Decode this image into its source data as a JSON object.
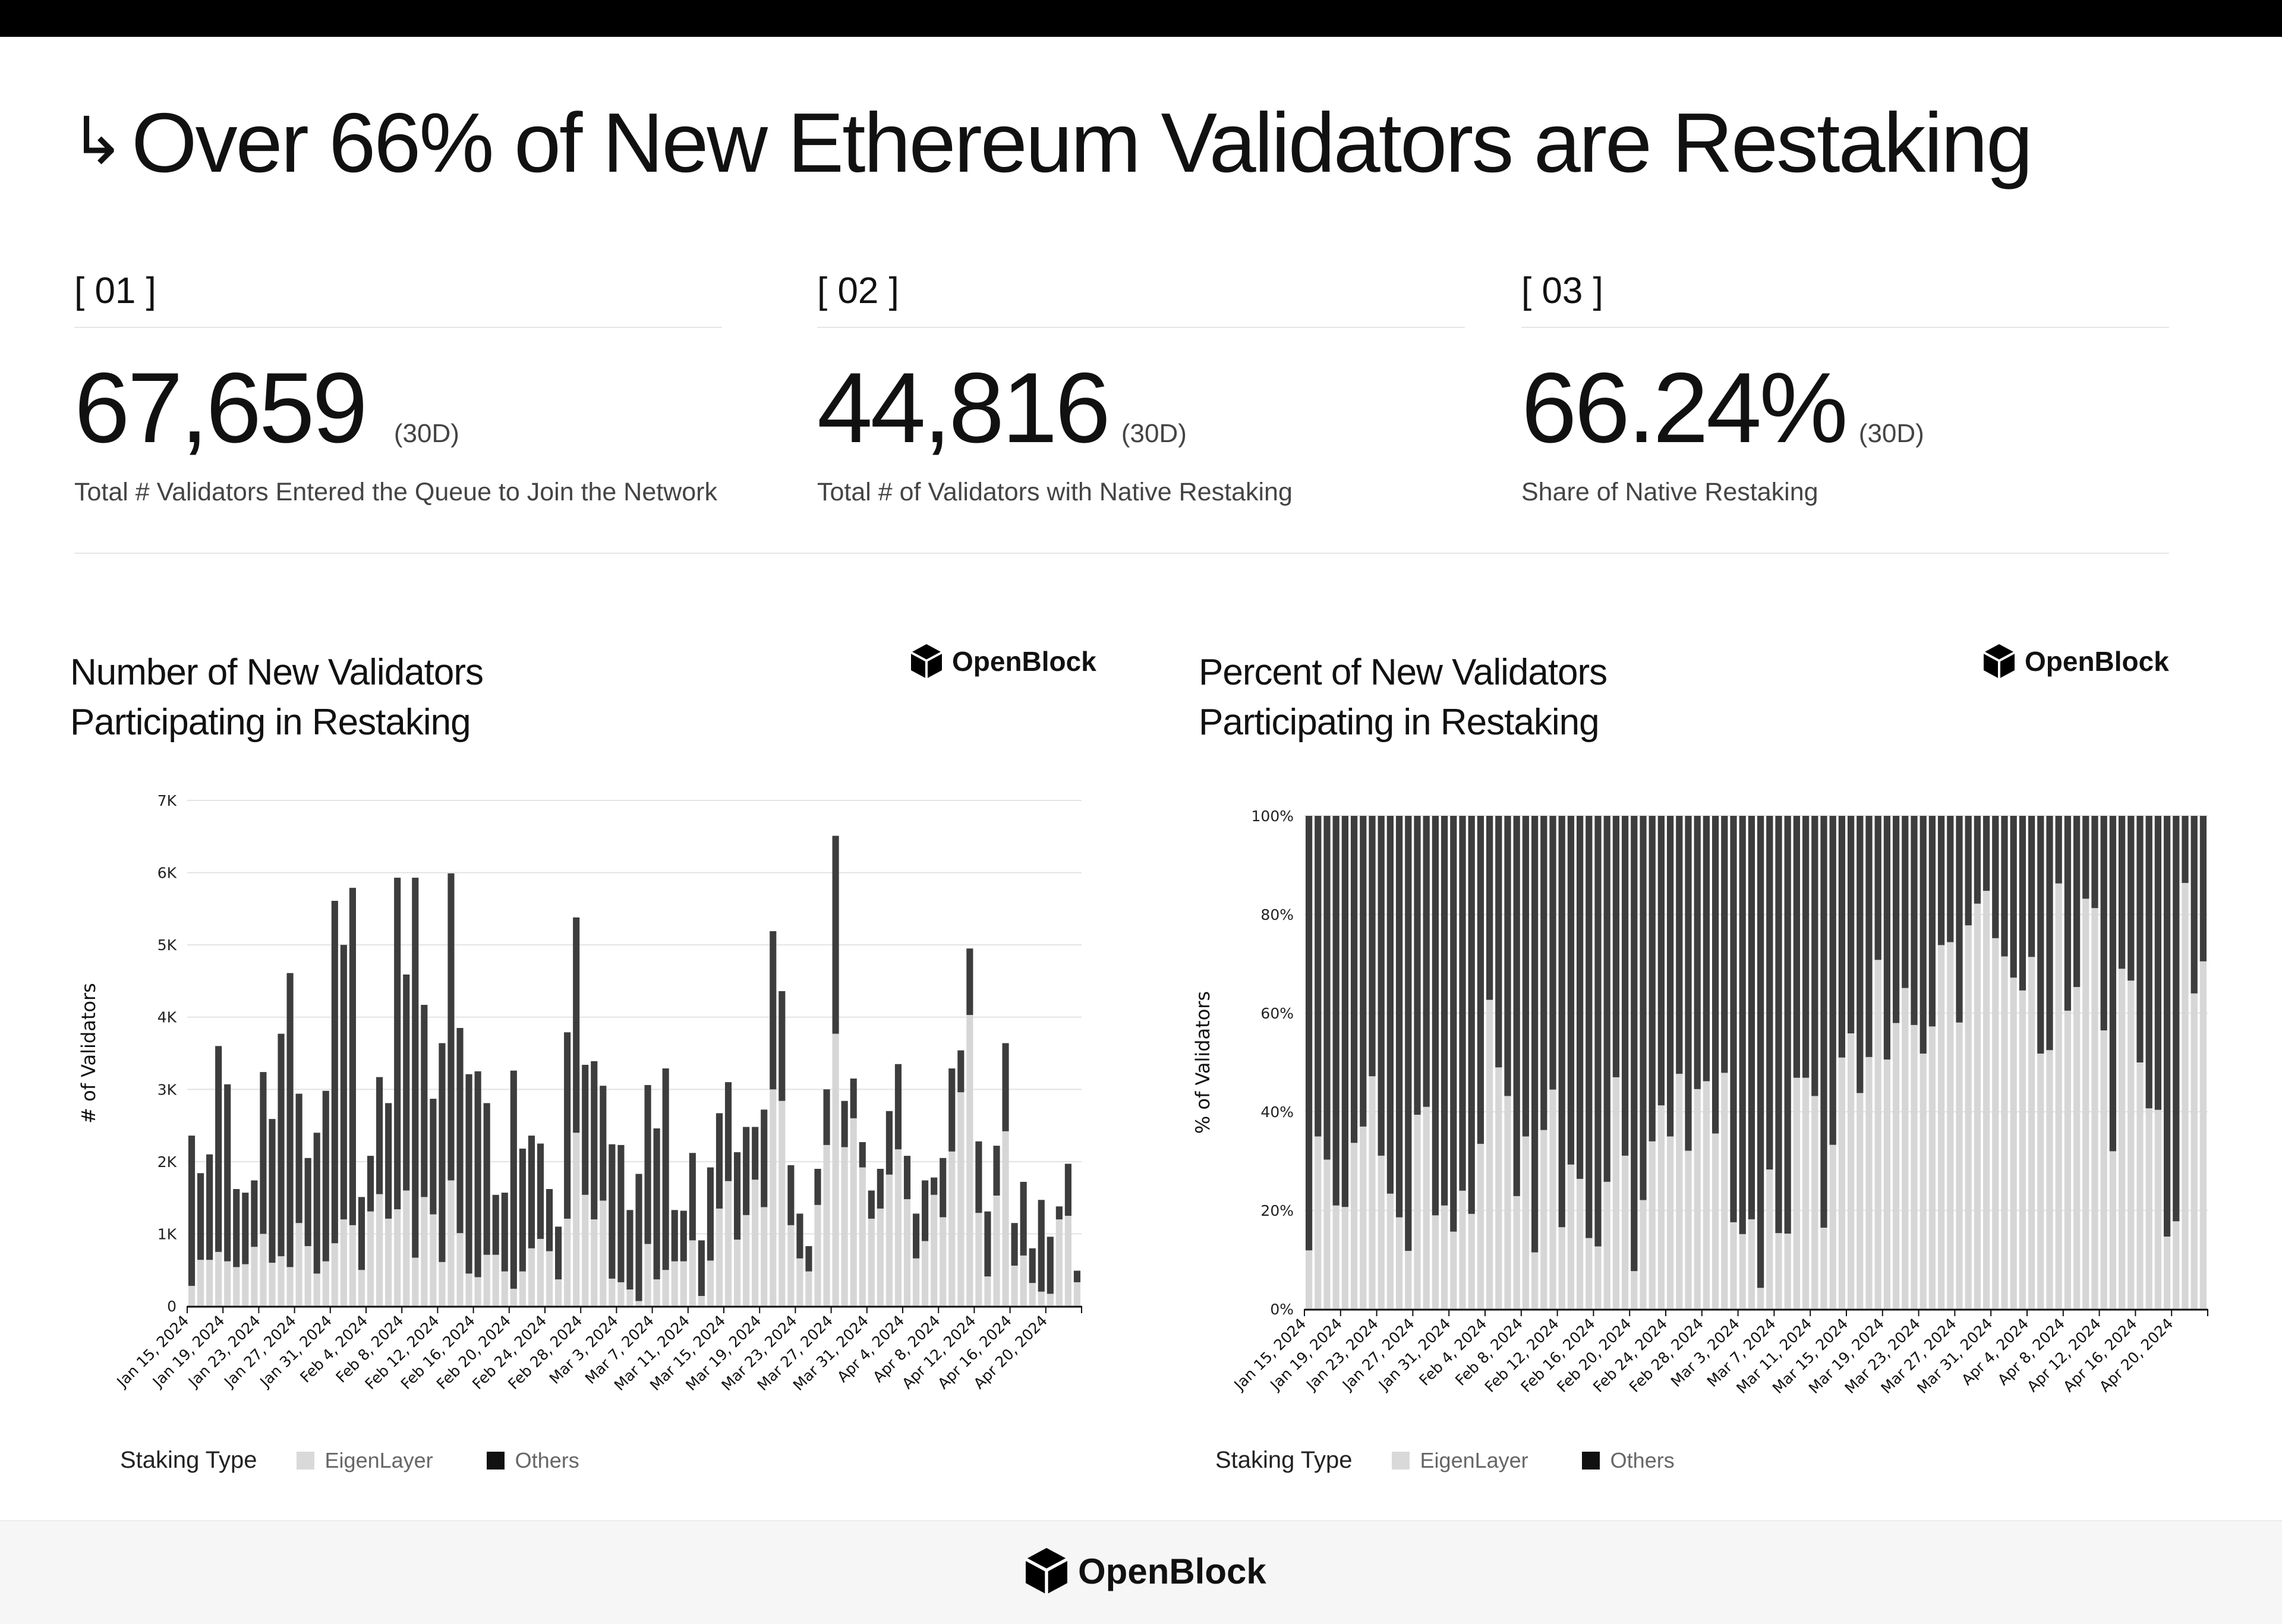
{
  "title": "Over 66% of New Ethereum Validators are Restaking",
  "title_icon": "arrow-turn-down-right-icon",
  "kpis": [
    {
      "index": "[ 01 ]",
      "value": "67,659",
      "period": "(30D)",
      "label": "Total # Validators Entered the Queue to Join the Network"
    },
    {
      "index": "[ 02 ]",
      "value": "44,816",
      "period": "(30D)",
      "label": "Total # of Validators with Native Restaking"
    },
    {
      "index": "[ 03 ]",
      "value": "66.24%",
      "period": "(30D)",
      "label": "Share of Native Restaking"
    }
  ],
  "brand": {
    "name": "OpenBlock",
    "icon": "cube-logo-icon"
  },
  "colors": {
    "eigenlayer": "#d6d6d6",
    "others": "#3d3d3d",
    "legend_others": "#111111"
  },
  "chart_data": [
    {
      "type": "bar",
      "stacked": true,
      "title_line1": "Number of New Validators",
      "title_line2": "Participating in Restaking",
      "ylabel": "# of Validators",
      "ylim": [
        0,
        7000
      ],
      "yticks": [
        0,
        1000,
        2000,
        3000,
        4000,
        5000,
        6000,
        7000
      ],
      "ytick_labels": [
        "0",
        "1K",
        "2K",
        "3K",
        "4K",
        "5K",
        "6K",
        "7K"
      ],
      "grid": true,
      "legend_title": "Staking Type",
      "legend_position": "bottom-left",
      "xtick_labels": [
        "Jan 15, 2024",
        "Jan 19, 2024",
        "Jan 23, 2024",
        "Jan 27, 2024",
        "Jan 31, 2024",
        "Feb 4, 2024",
        "Feb 8, 2024",
        "Feb 12, 2024",
        "Feb 16, 2024",
        "Feb 20, 2024",
        "Feb 24, 2024",
        "Feb 28, 2024",
        "Mar 3, 2024",
        "Mar 7, 2024",
        "Mar 11, 2024",
        "Mar 15, 2024",
        "Mar 19, 2024",
        "Mar 23, 2024",
        "Mar 27, 2024",
        "Mar 31, 2024",
        "Apr 4, 2024",
        "Apr 8, 2024",
        "Apr 12, 2024",
        "Apr 16, 2024",
        "Apr 20, 2024"
      ],
      "categories": [
        "Jan 15, 2024",
        "Jan 16, 2024",
        "Jan 17, 2024",
        "Jan 18, 2024",
        "Jan 19, 2024",
        "Jan 20, 2024",
        "Jan 21, 2024",
        "Jan 22, 2024",
        "Jan 23, 2024",
        "Jan 24, 2024",
        "Jan 25, 2024",
        "Jan 26, 2024",
        "Jan 27, 2024",
        "Jan 28, 2024",
        "Jan 29, 2024",
        "Jan 30, 2024",
        "Jan 31, 2024",
        "Feb 1, 2024",
        "Feb 2, 2024",
        "Feb 3, 2024",
        "Feb 4, 2024",
        "Feb 5, 2024",
        "Feb 6, 2024",
        "Feb 7, 2024",
        "Feb 8, 2024",
        "Feb 9, 2024",
        "Feb 10, 2024",
        "Feb 11, 2024",
        "Feb 12, 2024",
        "Feb 13, 2024",
        "Feb 14, 2024",
        "Feb 15, 2024",
        "Feb 16, 2024",
        "Feb 17, 2024",
        "Feb 18, 2024",
        "Feb 19, 2024",
        "Feb 20, 2024",
        "Feb 21, 2024",
        "Feb 22, 2024",
        "Feb 23, 2024",
        "Feb 24, 2024",
        "Feb 25, 2024",
        "Feb 26, 2024",
        "Feb 27, 2024",
        "Feb 28, 2024",
        "Feb 29, 2024",
        "Mar 1, 2024",
        "Mar 2, 2024",
        "Mar 3, 2024",
        "Mar 4, 2024",
        "Mar 5, 2024",
        "Mar 6, 2024",
        "Mar 7, 2024",
        "Mar 8, 2024",
        "Mar 9, 2024",
        "Mar 10, 2024",
        "Mar 11, 2024",
        "Mar 12, 2024",
        "Mar 13, 2024",
        "Mar 14, 2024",
        "Mar 15, 2024",
        "Mar 16, 2024",
        "Mar 17, 2024",
        "Mar 18, 2024",
        "Mar 19, 2024",
        "Mar 20, 2024",
        "Mar 21, 2024",
        "Mar 22, 2024",
        "Mar 23, 2024",
        "Mar 24, 2024",
        "Mar 25, 2024",
        "Mar 26, 2024",
        "Mar 27, 2024",
        "Mar 28, 2024",
        "Mar 29, 2024",
        "Mar 30, 2024",
        "Mar 31, 2024",
        "Apr 1, 2024",
        "Apr 2, 2024",
        "Apr 3, 2024",
        "Apr 4, 2024",
        "Apr 5, 2024",
        "Apr 6, 2024",
        "Apr 7, 2024",
        "Apr 8, 2024",
        "Apr 9, 2024",
        "Apr 10, 2024",
        "Apr 11, 2024",
        "Apr 12, 2024",
        "Apr 13, 2024",
        "Apr 14, 2024",
        "Apr 15, 2024",
        "Apr 16, 2024",
        "Apr 17, 2024",
        "Apr 18, 2024",
        "Apr 19, 2024",
        "Apr 20, 2024",
        "Apr 21, 2024",
        "Apr 22, 2024",
        "Apr 23, 2024"
      ],
      "series": [
        {
          "name": "EigenLayer",
          "values": [
            280,
            640,
            640,
            750,
            620,
            540,
            580,
            820,
            1000,
            600,
            690,
            540,
            1150,
            830,
            450,
            620,
            870,
            1200,
            1120,
            500,
            1310,
            1550,
            1210,
            1340,
            1600,
            670,
            1510,
            1270,
            610,
            1740,
            1010,
            450,
            400,
            710,
            710,
            480,
            240,
            480,
            800,
            930,
            760,
            370,
            1210,
            2400,
            1540,
            1200,
            1460,
            380,
            330,
            230,
            70,
            860,
            370,
            500,
            620,
            620,
            910,
            140,
            630,
            1350,
            1730,
            920,
            1260,
            1750,
            1370,
            3000,
            2840,
            1120,
            660,
            480,
            1400,
            2230,
            3770,
            2200,
            2600,
            1920,
            1210,
            1350,
            1820,
            2170,
            1480,
            660,
            900,
            1540,
            1230,
            2140,
            2960,
            4030,
            1290,
            410,
            1530,
            2420,
            560,
            700,
            320,
            200,
            170,
            1200,
            1250,
            330
          ]
        },
        {
          "name": "Others",
          "values": [
            2080,
            1200,
            1460,
            2850,
            2450,
            1080,
            990,
            920,
            2240,
            1990,
            3080,
            4070,
            1790,
            1220,
            1950,
            2360,
            4740,
            3800,
            4670,
            1010,
            770,
            1620,
            1600,
            4590,
            2990,
            5260,
            2660,
            1600,
            3030,
            4250,
            2840,
            2760,
            2850,
            2100,
            830,
            1090,
            3020,
            1700,
            1560,
            1320,
            860,
            730,
            2580,
            2980,
            1800,
            2190,
            1590,
            1860,
            1900,
            1100,
            1760,
            2200,
            2090,
            2790,
            710,
            700,
            1210,
            770,
            1290,
            1320,
            1370,
            1210,
            1220,
            730,
            1350,
            2190,
            1520,
            830,
            620,
            350,
            500,
            770,
            2740,
            640,
            550,
            350,
            390,
            550,
            880,
            1180,
            600,
            620,
            840,
            240,
            820,
            1150,
            580,
            920,
            990,
            900,
            690,
            1220,
            590,
            1020,
            480,
            1270,
            790,
            180,
            720,
            160
          ]
        }
      ]
    },
    {
      "type": "bar",
      "stacked": true,
      "title_line1": "Percent of New Validators",
      "title_line2": "Participating in Restaking",
      "ylabel": "% of Validators",
      "ylim": [
        0,
        100
      ],
      "yticks": [
        0,
        20,
        40,
        60,
        80,
        100
      ],
      "ytick_labels": [
        "0%",
        "20%",
        "40%",
        "60%",
        "80%",
        "100%"
      ],
      "grid": true,
      "legend_title": "Staking Type",
      "legend_position": "bottom-left",
      "xtick_labels": [
        "Jan 15, 2024",
        "Jan 19, 2024",
        "Jan 23, 2024",
        "Jan 27, 2024",
        "Jan 31, 2024",
        "Feb 4, 2024",
        "Feb 8, 2024",
        "Feb 12, 2024",
        "Feb 16, 2024",
        "Feb 20, 2024",
        "Feb 24, 2024",
        "Feb 28, 2024",
        "Mar 3, 2024",
        "Mar 7, 2024",
        "Mar 11, 2024",
        "Mar 15, 2024",
        "Mar 19, 2024",
        "Mar 23, 2024",
        "Mar 27, 2024",
        "Mar 31, 2024",
        "Apr 4, 2024",
        "Apr 8, 2024",
        "Apr 12, 2024",
        "Apr 16, 2024",
        "Apr 20, 2024"
      ],
      "series": [
        {
          "name": "EigenLayer",
          "values": [
            11.9,
            35,
            30.3,
            21,
            20.7,
            33.7,
            37,
            47.2,
            31.1,
            23.4,
            18.6,
            11.8,
            39.4,
            41,
            19,
            21,
            15.7,
            24,
            19.3,
            33.5,
            62.7,
            49,
            43.2,
            22.9,
            35,
            11.5,
            36.3,
            44.5,
            16.6,
            29.3,
            26.4,
            14.4,
            12.7,
            25.8,
            47,
            31.1,
            7.7,
            22.1,
            34,
            41.3,
            35,
            47.7,
            32.1,
            44.6,
            46.2,
            35.6,
            47.9,
            17.6,
            15.2,
            18.2,
            4.3,
            28.3,
            15.4,
            15.3,
            46.9,
            46.9,
            43.2,
            16.5,
            33.3,
            51,
            55.9,
            43.8,
            51.1,
            70.8,
            50.6,
            58,
            65.1,
            57.6,
            51.8,
            57.3,
            73.8,
            74.4,
            58.1,
            77.8,
            82.2,
            84.8,
            75.2,
            71.5,
            67.2,
            64.6,
            71.4,
            51.8,
            52.5,
            86.3,
            60.5,
            65.3,
            83.2,
            81.3,
            56.5,
            32,
            69,
            66.6,
            50,
            40.7,
            40.4,
            14.7,
            17.8,
            86.4,
            64,
            70.5
          ]
        },
        {
          "name": "Others",
          "values": "remainder to 100%"
        }
      ]
    }
  ]
}
